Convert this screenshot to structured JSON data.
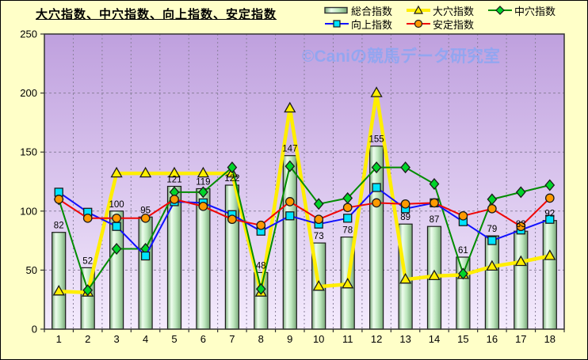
{
  "title": "大穴指数、中穴指数、向上指数、安定指数",
  "watermark": "©Caniの競馬データ研究室",
  "colors": {
    "background": "#ffffc8",
    "plot_top": "#bfa0de",
    "plot_bottom": "#f4ebfd",
    "grid": "#8a819c",
    "plot_border": "#333333",
    "axis_text": "#000000",
    "bar_label_text": "#000000",
    "watermark": "#8ea6f2",
    "bar_dark": "#79a879",
    "bar_mid": "#bfe8bf",
    "bar_light": "#eefdee",
    "bar_stroke": "#1a1a1a",
    "marker_stroke": "#1a1a1a"
  },
  "chart_data": {
    "type": "combo",
    "title": "大穴指数、中穴指数、向上指数、安定指数",
    "categories": [
      "1",
      "2",
      "3",
      "4",
      "5",
      "6",
      "7",
      "8",
      "9",
      "10",
      "11",
      "12",
      "13",
      "14",
      "15",
      "16",
      "17",
      "18"
    ],
    "ylim": [
      0,
      250
    ],
    "yticks": [
      0,
      50,
      100,
      150,
      200,
      250
    ],
    "grid": "both-dashed",
    "legend_position": "top-right",
    "bar_value_labels": [
      82,
      52,
      100,
      95,
      121,
      119,
      122,
      48,
      147,
      73,
      78,
      155,
      89,
      87,
      61,
      79,
      83,
      92
    ],
    "series": [
      {
        "name": "総合指数",
        "type": "bar",
        "marker": "bar",
        "line_color": "#1a1a1a",
        "marker_color": "#bfe8bf",
        "line_width": 1,
        "values": [
          82,
          52,
          100,
          95,
          121,
          119,
          122,
          48,
          147,
          73,
          78,
          155,
          89,
          87,
          61,
          79,
          83,
          92
        ]
      },
      {
        "name": "大穴指数",
        "type": "line",
        "marker": "triangle",
        "line_color": "#ffee00",
        "marker_color": "#ffee00",
        "line_width": 4.5,
        "values": [
          32,
          31,
          132,
          132,
          132,
          132,
          132,
          31,
          187,
          36,
          38,
          200,
          42,
          45,
          46,
          53,
          57,
          62
        ]
      },
      {
        "name": "中穴指数",
        "type": "line",
        "marker": "diamond",
        "line_color": "#008c00",
        "marker_color": "#00d42a",
        "line_width": 2,
        "values": [
          110,
          33,
          68,
          68,
          116,
          116,
          137,
          34,
          138,
          106,
          111,
          137,
          137,
          123,
          47,
          110,
          116,
          122
        ]
      },
      {
        "name": "向上指数",
        "type": "line",
        "marker": "square",
        "line_color": "#1010ff",
        "marker_color": "#00e4ff",
        "line_width": 2,
        "values": [
          116,
          99,
          87,
          62,
          108,
          107,
          97,
          83,
          96,
          89,
          94,
          120,
          102,
          107,
          91,
          75,
          84,
          93
        ]
      },
      {
        "name": "安定指数",
        "type": "line",
        "marker": "circle",
        "line_color": "#f00505",
        "marker_color": "#ff9a00",
        "line_width": 2,
        "values": [
          110,
          94,
          94,
          94,
          110,
          104,
          93,
          88,
          108,
          93,
          103,
          107,
          106,
          107,
          96,
          102,
          87,
          111
        ]
      }
    ]
  }
}
